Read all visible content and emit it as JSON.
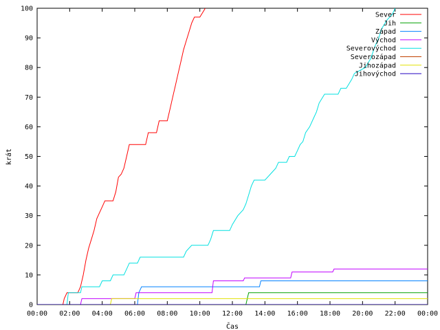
{
  "chart_data": {
    "type": "line",
    "title": "",
    "xlabel": "Čas",
    "ylabel": "krát",
    "xlim": [
      "00:00",
      "24:00"
    ],
    "ylim": [
      0,
      100
    ],
    "x_ticks": [
      "00:00",
      "02:00",
      "04:00",
      "06:00",
      "08:00",
      "10:00",
      "12:00",
      "14:00",
      "16:00",
      "18:00",
      "20:00",
      "22:00",
      "00:00"
    ],
    "y_ticks": [
      0,
      10,
      20,
      30,
      40,
      50,
      60,
      70,
      80,
      90,
      100
    ],
    "grid": false,
    "legend": "top-right",
    "series": [
      {
        "name": "Sever",
        "color": "#ff0000",
        "points": [
          [
            "01:35",
            0
          ],
          [
            "01:40",
            2
          ],
          [
            "01:50",
            4
          ],
          [
            "02:30",
            4
          ],
          [
            "02:40",
            6
          ],
          [
            "02:50",
            10
          ],
          [
            "03:00",
            15
          ],
          [
            "03:10",
            19
          ],
          [
            "03:20",
            22
          ],
          [
            "03:30",
            25
          ],
          [
            "03:40",
            29
          ],
          [
            "03:50",
            31
          ],
          [
            "04:00",
            33
          ],
          [
            "04:10",
            35
          ],
          [
            "04:40",
            35
          ],
          [
            "04:50",
            38
          ],
          [
            "05:00",
            43
          ],
          [
            "05:10",
            44
          ],
          [
            "05:20",
            46
          ],
          [
            "05:30",
            50
          ],
          [
            "05:40",
            54
          ],
          [
            "06:40",
            54
          ],
          [
            "06:50",
            58
          ],
          [
            "07:20",
            58
          ],
          [
            "07:30",
            62
          ],
          [
            "08:00",
            62
          ],
          [
            "08:10",
            66
          ],
          [
            "08:20",
            70
          ],
          [
            "08:30",
            74
          ],
          [
            "08:40",
            78
          ],
          [
            "08:50",
            82
          ],
          [
            "09:00",
            86
          ],
          [
            "09:10",
            89
          ],
          [
            "09:20",
            92
          ],
          [
            "09:30",
            95
          ],
          [
            "09:40",
            97
          ],
          [
            "10:00",
            97
          ],
          [
            "10:20",
            100
          ]
        ]
      },
      {
        "name": "Jih",
        "color": "#00a000",
        "points": [
          [
            "00:00",
            0
          ],
          [
            "12:50",
            0
          ],
          [
            "12:55",
            2
          ],
          [
            "13:00",
            4
          ],
          [
            "24:00",
            4
          ]
        ]
      },
      {
        "name": "Západ",
        "color": "#0080ff",
        "points": [
          [
            "00:00",
            0
          ],
          [
            "06:10",
            0
          ],
          [
            "06:15",
            4
          ],
          [
            "06:25",
            6
          ],
          [
            "10:30",
            6
          ],
          [
            "13:40",
            6
          ],
          [
            "13:45",
            8
          ],
          [
            "24:00",
            8
          ]
        ]
      },
      {
        "name": "Východ",
        "color": "#c000ff",
        "points": [
          [
            "00:00",
            0
          ],
          [
            "02:40",
            0
          ],
          [
            "02:45",
            2
          ],
          [
            "06:00",
            2
          ],
          [
            "06:05",
            4
          ],
          [
            "10:45",
            4
          ],
          [
            "10:50",
            8
          ],
          [
            "12:40",
            8
          ],
          [
            "12:45",
            9
          ],
          [
            "15:35",
            9
          ],
          [
            "15:40",
            11
          ],
          [
            "18:10",
            11
          ],
          [
            "18:15",
            12
          ],
          [
            "24:00",
            12
          ]
        ]
      },
      {
        "name": "Severovýchod",
        "color": "#00e0e0",
        "points": [
          [
            "01:50",
            0
          ],
          [
            "01:55",
            4
          ],
          [
            "02:10",
            4
          ],
          [
            "02:40",
            4
          ],
          [
            "02:45",
            6
          ],
          [
            "03:50",
            6
          ],
          [
            "04:00",
            8
          ],
          [
            "04:30",
            8
          ],
          [
            "04:40",
            10
          ],
          [
            "05:20",
            10
          ],
          [
            "05:30",
            12
          ],
          [
            "05:40",
            14
          ],
          [
            "06:10",
            14
          ],
          [
            "06:20",
            16
          ],
          [
            "09:00",
            16
          ],
          [
            "09:10",
            18
          ],
          [
            "09:30",
            20
          ],
          [
            "10:30",
            20
          ],
          [
            "10:40",
            22
          ],
          [
            "10:50",
            25
          ],
          [
            "11:50",
            25
          ],
          [
            "12:00",
            27
          ],
          [
            "12:20",
            30
          ],
          [
            "12:40",
            32
          ],
          [
            "12:50",
            34
          ],
          [
            "13:00",
            37
          ],
          [
            "13:10",
            40
          ],
          [
            "13:20",
            42
          ],
          [
            "14:00",
            42
          ],
          [
            "14:20",
            44
          ],
          [
            "14:40",
            46
          ],
          [
            "14:50",
            48
          ],
          [
            "15:20",
            48
          ],
          [
            "15:30",
            50
          ],
          [
            "15:50",
            50
          ],
          [
            "16:00",
            52
          ],
          [
            "16:10",
            54
          ],
          [
            "16:20",
            55
          ],
          [
            "16:30",
            58
          ],
          [
            "16:45",
            60
          ],
          [
            "17:00",
            63
          ],
          [
            "17:10",
            65
          ],
          [
            "17:20",
            68
          ],
          [
            "17:40",
            71
          ],
          [
            "18:30",
            71
          ],
          [
            "18:40",
            73
          ],
          [
            "19:00",
            73
          ],
          [
            "19:20",
            76
          ],
          [
            "19:30",
            78
          ],
          [
            "19:50",
            79
          ],
          [
            "20:10",
            80
          ],
          [
            "20:30",
            83
          ],
          [
            "20:45",
            87
          ],
          [
            "21:00",
            90
          ],
          [
            "21:10",
            93
          ],
          [
            "21:30",
            96
          ],
          [
            "21:50",
            98
          ],
          [
            "22:00",
            100
          ]
        ]
      },
      {
        "name": "Severozápad",
        "color": "#c04000",
        "points": [
          [
            "00:00",
            0
          ],
          [
            "24:00",
            0
          ]
        ]
      },
      {
        "name": "Jihozápad",
        "color": "#e0e000",
        "points": [
          [
            "00:00",
            0
          ],
          [
            "04:30",
            0
          ],
          [
            "04:35",
            2
          ],
          [
            "24:00",
            2
          ]
        ]
      },
      {
        "name": "Jihovýchod",
        "color": "#2000c0",
        "points": [
          [
            "00:00",
            0
          ],
          [
            "24:00",
            0
          ]
        ]
      }
    ]
  }
}
